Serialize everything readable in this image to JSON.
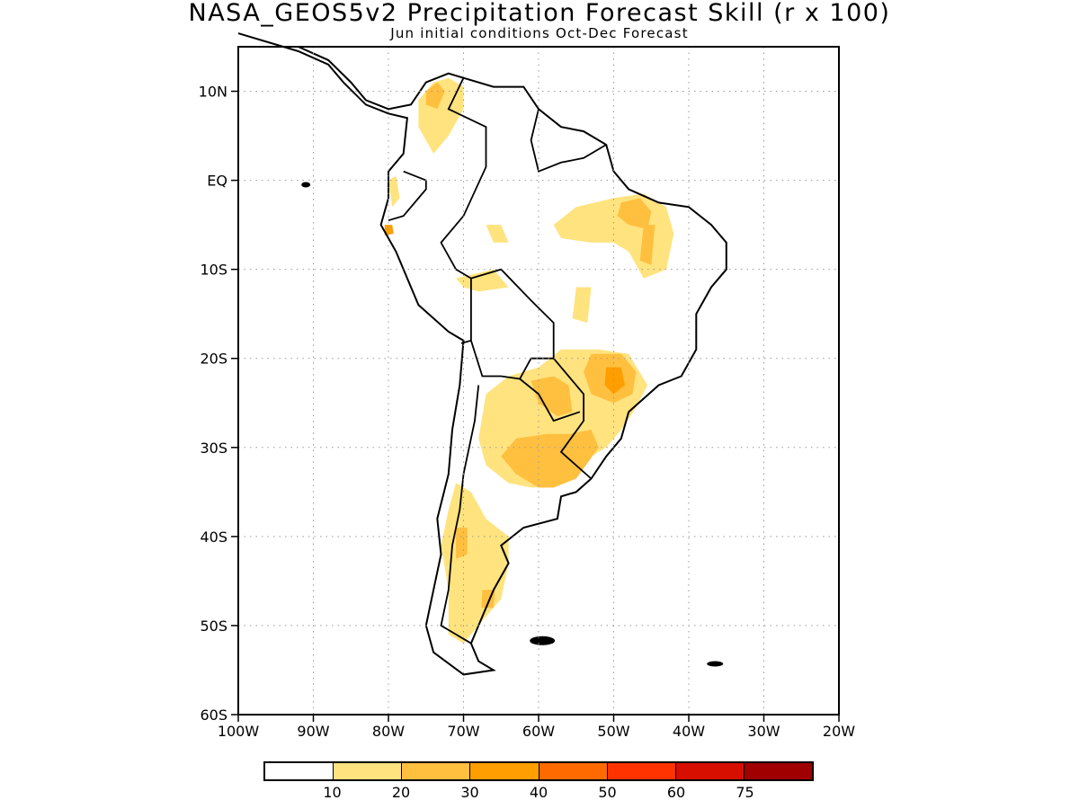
{
  "title": "NASA_GEOS5v2 Precipitation Forecast Skill (r x 100)",
  "subtitle": "Jun initial conditions   Oct-Dec Forecast",
  "map": {
    "region": "South America",
    "lon_range": [
      -100,
      -20
    ],
    "lat_range": [
      -60,
      15
    ],
    "grid": "dotted",
    "x_ticks": [
      {
        "value": -100,
        "label": "100W"
      },
      {
        "value": -90,
        "label": "90W"
      },
      {
        "value": -80,
        "label": "80W"
      },
      {
        "value": -70,
        "label": "70W"
      },
      {
        "value": -60,
        "label": "60W"
      },
      {
        "value": -50,
        "label": "50W"
      },
      {
        "value": -40,
        "label": "40W"
      },
      {
        "value": -30,
        "label": "30W"
      },
      {
        "value": -20,
        "label": "20W"
      }
    ],
    "y_ticks": [
      {
        "value": 10,
        "label": "10N"
      },
      {
        "value": 0,
        "label": "EQ"
      },
      {
        "value": -10,
        "label": "10S"
      },
      {
        "value": -20,
        "label": "20S"
      },
      {
        "value": -30,
        "label": "30S"
      },
      {
        "value": -40,
        "label": "40S"
      },
      {
        "value": -50,
        "label": "50S"
      },
      {
        "value": -60,
        "label": "60S"
      }
    ],
    "skill_regions": [
      {
        "name": "northern-colombia-venezuela",
        "level": 1,
        "points": [
          [
            -76,
            9
          ],
          [
            -74,
            11
          ],
          [
            -72,
            11.5
          ],
          [
            -70,
            10.5
          ],
          [
            -70,
            8
          ],
          [
            -72,
            5
          ],
          [
            -74,
            3
          ],
          [
            -76,
            6
          ]
        ]
      },
      {
        "name": "colombia-core",
        "level": 2,
        "points": [
          [
            -75,
            10
          ],
          [
            -73.5,
            11
          ],
          [
            -72.5,
            10
          ],
          [
            -73.5,
            8
          ],
          [
            -75,
            8.5
          ]
        ]
      },
      {
        "name": "ecuador-coast",
        "level": 1,
        "points": [
          [
            -80,
            0
          ],
          [
            -79,
            0.5
          ],
          [
            -78.5,
            -2
          ],
          [
            -79.5,
            -3
          ]
        ]
      },
      {
        "name": "peru-north-spot",
        "level": 3,
        "points": [
          [
            -80.5,
            -5
          ],
          [
            -79.5,
            -5
          ],
          [
            -79.3,
            -6
          ],
          [
            -80.5,
            -6.2
          ]
        ]
      },
      {
        "name": "amazon-west",
        "level": 1,
        "points": [
          [
            -67,
            -5
          ],
          [
            -65,
            -5
          ],
          [
            -64,
            -7
          ],
          [
            -66,
            -7
          ]
        ]
      },
      {
        "name": "bolivia-north",
        "level": 1,
        "points": [
          [
            -71,
            -11
          ],
          [
            -66,
            -10
          ],
          [
            -64,
            -12
          ],
          [
            -68,
            -12.5
          ],
          [
            -70,
            -12
          ]
        ]
      },
      {
        "name": "ne-brazil-wide",
        "level": 1,
        "points": [
          [
            -58,
            -5
          ],
          [
            -55,
            -3
          ],
          [
            -50,
            -2
          ],
          [
            -46,
            -1.5
          ],
          [
            -43,
            -3
          ],
          [
            -42,
            -6
          ],
          [
            -43,
            -10
          ],
          [
            -46,
            -11
          ],
          [
            -48,
            -8
          ],
          [
            -50,
            -7
          ],
          [
            -53,
            -7
          ],
          [
            -57,
            -6.5
          ]
        ]
      },
      {
        "name": "ne-brazil-core",
        "level": 2,
        "points": [
          [
            -49,
            -2.5
          ],
          [
            -46.5,
            -2
          ],
          [
            -45,
            -3.5
          ],
          [
            -45.5,
            -5.5
          ],
          [
            -48,
            -5
          ],
          [
            -49.5,
            -4
          ]
        ]
      },
      {
        "name": "ne-brazil-tail",
        "level": 2,
        "points": [
          [
            -46,
            -5
          ],
          [
            -44.5,
            -5
          ],
          [
            -45,
            -9.5
          ],
          [
            -46.5,
            -9
          ]
        ]
      },
      {
        "name": "central-brazil-patches",
        "level": 1,
        "points": [
          [
            -55,
            -12
          ],
          [
            -53,
            -12
          ],
          [
            -53.5,
            -16
          ],
          [
            -55.5,
            -15.5
          ]
        ]
      },
      {
        "name": "southeast-brazil-paraguay",
        "level": 1,
        "points": [
          [
            -57,
            -19
          ],
          [
            -52,
            -19
          ],
          [
            -48,
            -19.5
          ],
          [
            -45.5,
            -23
          ],
          [
            -47,
            -25.5
          ],
          [
            -49,
            -28
          ],
          [
            -51,
            -30
          ],
          [
            -54,
            -31.5
          ],
          [
            -57,
            -32
          ],
          [
            -58,
            -34.5
          ],
          [
            -61,
            -34.5
          ],
          [
            -64,
            -34
          ],
          [
            -67,
            -32
          ],
          [
            -68,
            -29
          ],
          [
            -67,
            -24
          ],
          [
            -64,
            -22
          ],
          [
            -60,
            -21
          ]
        ]
      },
      {
        "name": "southeast-brazil-core",
        "level": 2,
        "points": [
          [
            -53,
            -19.5
          ],
          [
            -49,
            -19.5
          ],
          [
            -47,
            -21.5
          ],
          [
            -47.5,
            -24
          ],
          [
            -50,
            -25
          ],
          [
            -53,
            -24
          ],
          [
            -54,
            -21.5
          ]
        ]
      },
      {
        "name": "southeast-brazil-peak",
        "level": 3,
        "points": [
          [
            -51,
            -21
          ],
          [
            -49,
            -21
          ],
          [
            -48.5,
            -23
          ],
          [
            -50,
            -24
          ],
          [
            -51.2,
            -23
          ]
        ]
      },
      {
        "name": "paraguay-core",
        "level": 2,
        "points": [
          [
            -61,
            -22.5
          ],
          [
            -58,
            -22
          ],
          [
            -56,
            -23
          ],
          [
            -55.5,
            -26
          ],
          [
            -57.5,
            -26.5
          ],
          [
            -60,
            -25
          ]
        ]
      },
      {
        "name": "uruguay-argentina-core",
        "level": 2,
        "points": [
          [
            -63,
            -29
          ],
          [
            -59,
            -28.5
          ],
          [
            -56,
            -28.5
          ],
          [
            -53,
            -28
          ],
          [
            -52,
            -30
          ],
          [
            -55,
            -33.5
          ],
          [
            -58,
            -34.5
          ],
          [
            -60,
            -34.5
          ],
          [
            -63,
            -33
          ],
          [
            -65,
            -31
          ]
        ]
      },
      {
        "name": "patagonia",
        "level": 1,
        "points": [
          [
            -71,
            -34
          ],
          [
            -69,
            -35
          ],
          [
            -67,
            -38
          ],
          [
            -64,
            -40
          ],
          [
            -64,
            -43
          ],
          [
            -65,
            -47
          ],
          [
            -67,
            -49
          ],
          [
            -69,
            -51
          ],
          [
            -70,
            -52
          ],
          [
            -72,
            -51
          ],
          [
            -72,
            -46
          ],
          [
            -73,
            -41
          ],
          [
            -72,
            -37
          ]
        ]
      },
      {
        "name": "patagonia-core",
        "level": 2,
        "points": [
          [
            -71,
            -39
          ],
          [
            -69.5,
            -39
          ],
          [
            -69.5,
            -42
          ],
          [
            -71,
            -42.5
          ]
        ]
      },
      {
        "name": "patagonia-south-core",
        "level": 2,
        "points": [
          [
            -67.5,
            -46
          ],
          [
            -65.8,
            -46
          ],
          [
            -66,
            -48
          ],
          [
            -67.6,
            -48
          ]
        ]
      }
    ]
  },
  "colorbar": {
    "colors": [
      "#ffffff",
      "#ffe37e",
      "#ffbf3f",
      "#ff9e00",
      "#ff6a00",
      "#ff3300",
      "#d60f00",
      "#a00000"
    ],
    "labels": [
      "10",
      "20",
      "30",
      "40",
      "50",
      "60",
      "75"
    ]
  }
}
